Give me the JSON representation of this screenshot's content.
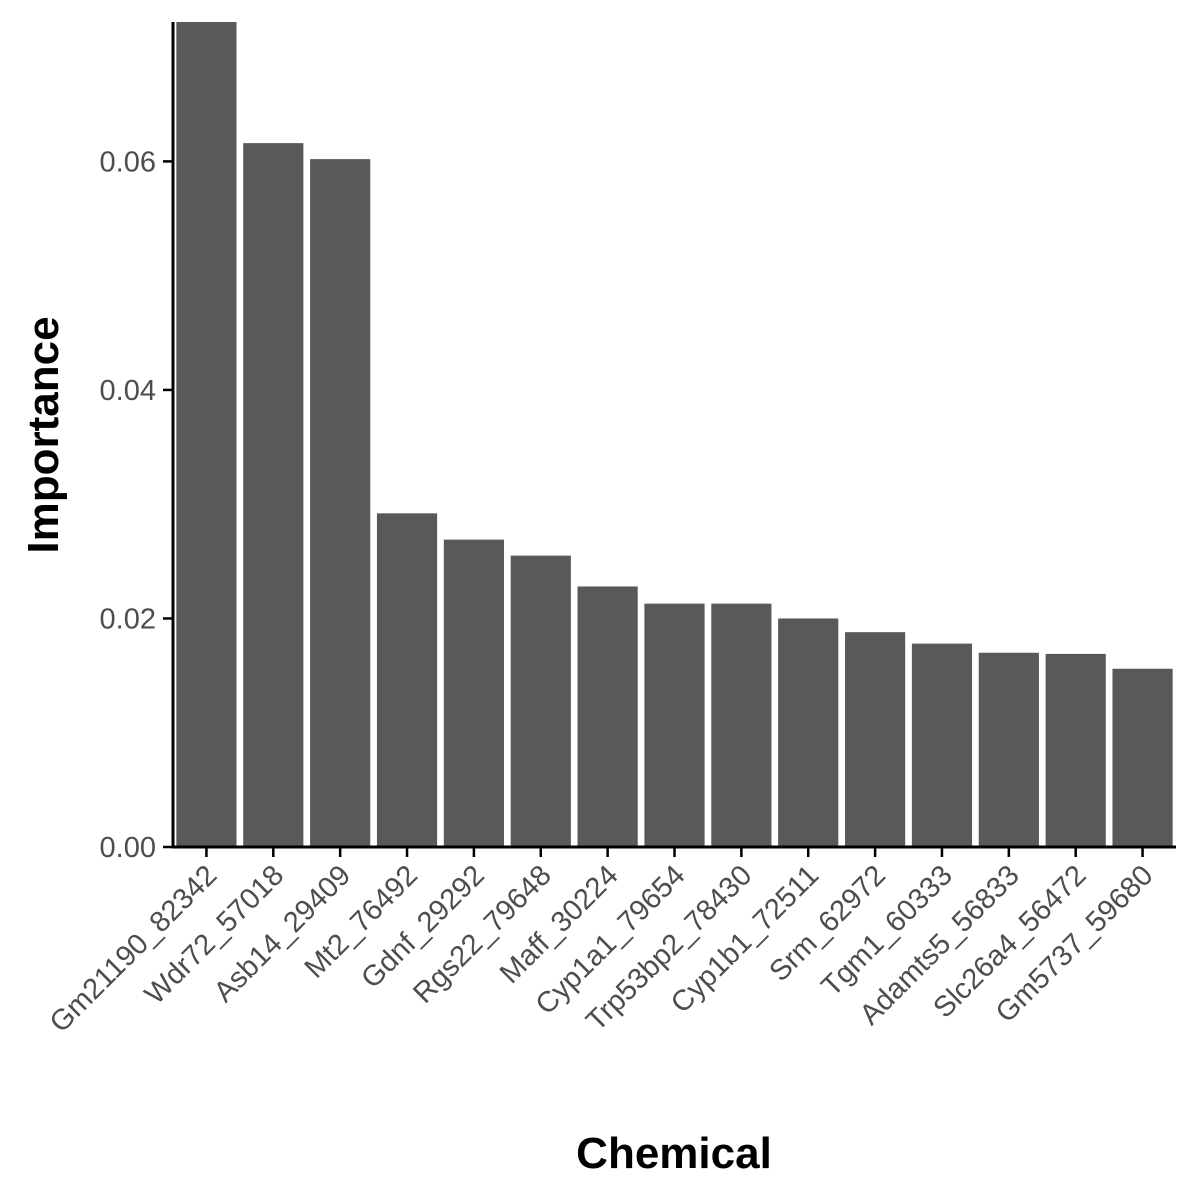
{
  "chart_data": {
    "type": "bar",
    "title": "",
    "xlabel": "Chemical",
    "ylabel": "Importance",
    "categories": [
      "Gm21190_82342",
      "Wdr72_57018",
      "Asb14_29409",
      "Mt2_76492",
      "Gdnf_29292",
      "Rgs22_79648",
      "Maff_30224",
      "Cyp1a1_79654",
      "Trp53bp2_78430",
      "Cyp1b1_72511",
      "Srm_62972",
      "Tgm1_60333",
      "Adamts5_56833",
      "Slc26a4_56472",
      "Gm5737_59680"
    ],
    "values": [
      0.0722,
      0.0616,
      0.0602,
      0.0292,
      0.0269,
      0.0255,
      0.0228,
      0.0213,
      0.0213,
      0.02,
      0.0188,
      0.0178,
      0.017,
      0.0169,
      0.0156
    ],
    "ylim": [
      0,
      0.0722
    ],
    "yticks": [
      0.0,
      0.02,
      0.04,
      0.06
    ],
    "ytick_labels": [
      "0.00",
      "0.02",
      "0.04",
      "0.06"
    ],
    "grid": false,
    "legend": "none",
    "colors": {
      "bar": "#595959",
      "axis": "#000000",
      "tick_text": "#4d4d4d",
      "title_text": "#000000"
    }
  }
}
